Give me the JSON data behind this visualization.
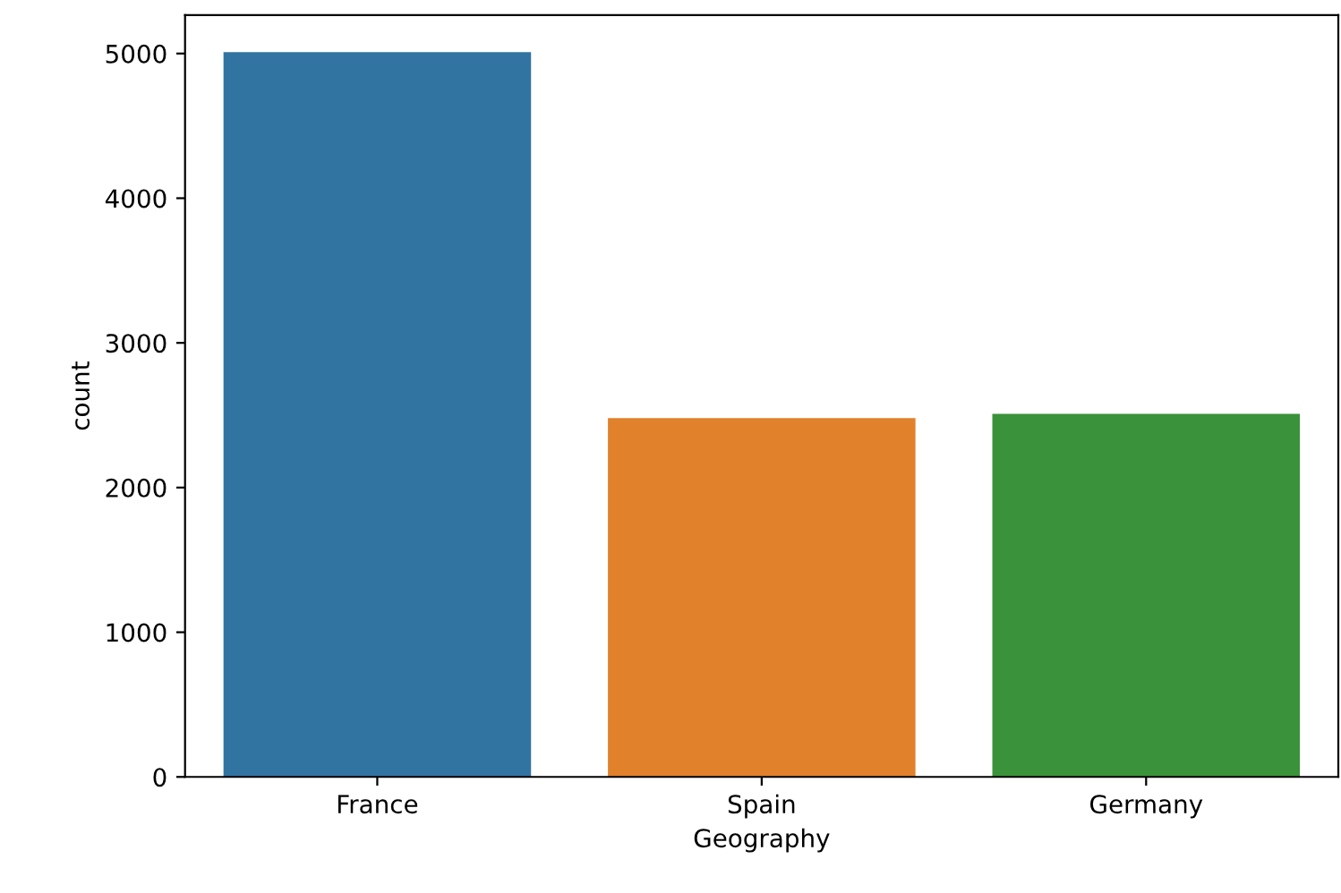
{
  "chart_data": {
    "type": "bar",
    "xlabel": "Geography",
    "ylabel": "count",
    "categories": [
      "France",
      "Spain",
      "Germany"
    ],
    "values": [
      5010,
      2480,
      2510
    ],
    "colors": [
      "#3274a1",
      "#e1812c",
      "#3a923a"
    ],
    "ylim": [
      0,
      5265
    ],
    "yticks": [
      0,
      1000,
      2000,
      3000,
      4000,
      5000
    ],
    "grid": false
  }
}
